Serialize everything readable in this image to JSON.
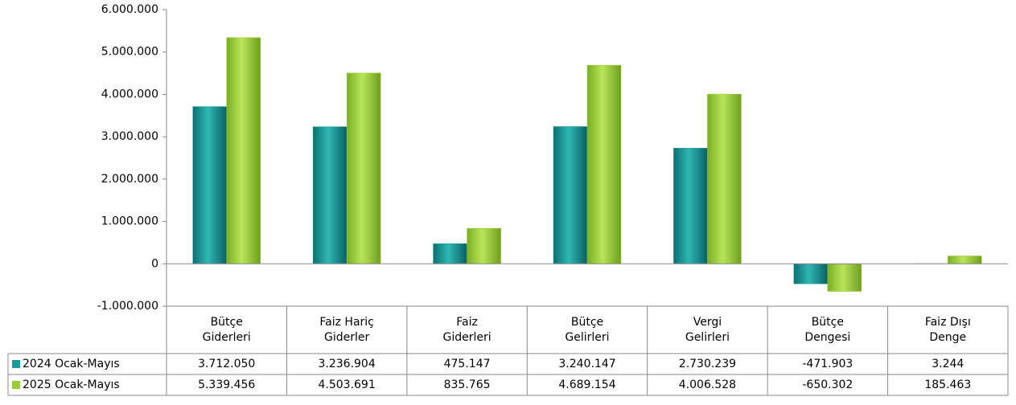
{
  "chart_data": {
    "type": "bar",
    "categories": [
      "Bütçe\nGiderleri",
      "Faiz Hariç\nGiderler",
      "Faiz\nGiderleri",
      "Bütçe\nGelirleri",
      "Vergi\nGelirleri",
      "Bütçe\nDengesi",
      "Faiz Dışı\nDenge"
    ],
    "series": [
      {
        "name": "2024 Ocak-Mayıs",
        "color": "#1a9c9c",
        "values": [
          3712050,
          3236904,
          475147,
          3240147,
          2730239,
          -471903,
          3244
        ],
        "value_labels": [
          "3.712.050",
          "3.236.904",
          "475.147",
          "3.240.147",
          "2.730.239",
          "-471.903",
          "3.244"
        ]
      },
      {
        "name": "2025 Ocak-Mayıs",
        "color": "#9acd32",
        "values": [
          5339456,
          4503691,
          835765,
          4689154,
          4006528,
          -650302,
          185463
        ],
        "value_labels": [
          "5.339.456",
          "4.503.691",
          "835.765",
          "4.689.154",
          "4.006.528",
          "-650.302",
          "185.463"
        ]
      }
    ],
    "ylim": [
      -1000000,
      6000000
    ],
    "yticks": [
      {
        "value": -1000000,
        "label": "-1.000.000"
      },
      0,
      {
        "value": 1000000,
        "label": "1.000.000"
      },
      {
        "value": 2000000,
        "label": "2.000.000"
      },
      {
        "value": 3000000,
        "label": "3.000.000"
      },
      {
        "value": 4000000,
        "label": "4.000.000"
      },
      {
        "value": 5000000,
        "label": "5.000.000"
      },
      {
        "value": 6000000,
        "label": "6.000.000"
      }
    ],
    "grid": false
  }
}
